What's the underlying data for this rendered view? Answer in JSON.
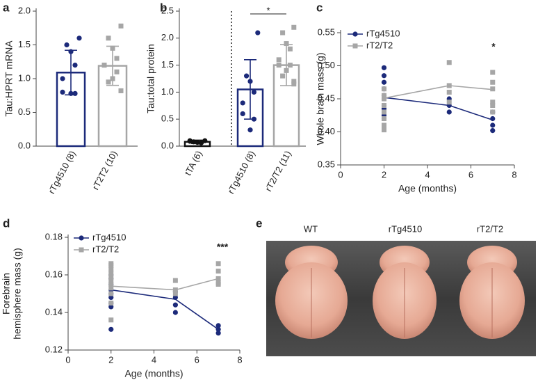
{
  "chart_data": [
    {
      "type": "bar",
      "label": "a",
      "ylabel": "Tau:HPRT mRNA",
      "categories": [
        "rTg4510 (8)",
        "rT2T2 (10)"
      ],
      "values": [
        1.09,
        1.19
      ],
      "errors": [
        0.33,
        0.29
      ],
      "colors": [
        "#1c2a7a",
        "#a6a6a6"
      ],
      "points": [
        [
          1.6,
          1.5,
          1.4,
          1.2,
          1.0,
          0.8,
          0.78,
          0.78
        ],
        [
          1.78,
          1.6,
          1.45,
          1.3,
          1.2,
          1.2,
          1.1,
          1.0,
          0.95,
          0.82
        ]
      ],
      "ylim": [
        0,
        2.0
      ],
      "yticks": [
        {
          "value": 0,
          "label": "0.0"
        },
        {
          "value": 0.5,
          "label": "0.5"
        },
        {
          "value": 1.0,
          "label": "1.0"
        },
        {
          "value": 1.5,
          "label": "1.5"
        },
        {
          "value": 2.0,
          "label": "2.0"
        }
      ]
    },
    {
      "type": "bar",
      "label": "b",
      "ylabel": "Tau:total protein",
      "annotation": "*",
      "categories": [
        "tTA (6)",
        "rTg4510 (8)",
        "rT2/T2 (11)"
      ],
      "values": [
        0.08,
        1.05,
        1.5
      ],
      "errors": [
        0.03,
        0.55,
        0.38
      ],
      "colors": [
        "#111111",
        "#1c2a7a",
        "#a6a6a6"
      ],
      "points": [
        [
          0.1,
          0.08,
          0.07,
          0.06,
          0.09,
          0.1
        ],
        [
          2.1,
          1.3,
          1.2,
          1.0,
          0.8,
          0.6,
          0.5,
          0.3
        ],
        [
          2.2,
          2.1,
          1.9,
          1.8,
          1.6,
          1.5,
          1.5,
          1.4,
          1.3,
          1.2,
          1.15
        ]
      ],
      "ylim": [
        0,
        2.5
      ],
      "yticks": [
        {
          "value": 0,
          "label": "0.0"
        },
        {
          "value": 0.5,
          "label": "0.5"
        },
        {
          "value": 1.0,
          "label": "1.0"
        },
        {
          "value": 1.5,
          "label": "1.5"
        },
        {
          "value": 2.0,
          "label": "2.0"
        },
        {
          "value": 2.5,
          "label": "2.5"
        }
      ]
    },
    {
      "type": "line",
      "label": "c",
      "ylabel": [
        "Whole brain mass (g)"
      ],
      "xlabel": "Age (months)",
      "annotation": "*",
      "x": [
        2,
        5,
        7
      ],
      "series": [
        {
          "name": "rTg4510",
          "color": "#1c2a7a",
          "marker": "circle",
          "values": [
            0.452,
            0.44,
            0.418
          ],
          "points": [
            [
              0.497,
              0.485,
              0.475,
              0.465,
              0.455,
              0.45,
              0.44,
              0.435,
              0.43,
              0.425,
              0.42
            ],
            [
              0.45,
              0.44,
              0.43
            ],
            [
              0.43,
              0.42,
              0.41,
              0.402
            ]
          ]
        },
        {
          "name": "rT2/T2",
          "color": "#a6a6a6",
          "marker": "square",
          "values": [
            0.451,
            0.47,
            0.464
          ],
          "points": [
            [
              0.465,
              0.455,
              0.45,
              0.44,
              0.43,
              0.42,
              0.41,
              0.403
            ],
            [
              0.505,
              0.47,
              0.46,
              0.445
            ],
            [
              0.49,
              0.475,
              0.465,
              0.445,
              0.44,
              0.43
            ]
          ]
        }
      ],
      "xlim": [
        0,
        8
      ],
      "xticks": [
        0,
        2,
        4,
        6,
        8
      ],
      "ylim": [
        0.35,
        0.55
      ],
      "yticks": [
        0.35,
        {
          "value": 0.4,
          "label": "0.40"
        },
        0.45,
        {
          "value": 0.5,
          "label": "0.50"
        },
        0.55
      ]
    },
    {
      "type": "line",
      "label": "d",
      "ylabel": [
        "Forebrain",
        "hemisphere mass (g)"
      ],
      "xlabel": "Age (months)",
      "annotation": "***",
      "x": [
        2,
        5,
        7
      ],
      "series": [
        {
          "name": "rTg4510",
          "color": "#1c2a7a",
          "marker": "circle",
          "values": [
            0.152,
            0.147,
            0.131
          ],
          "points": [
            [
              0.16,
              0.158,
              0.155,
              0.152,
              0.15,
              0.148,
              0.145,
              0.143,
              0.131
            ],
            [
              0.151,
              0.148,
              0.144,
              0.14
            ],
            [
              0.133,
              0.131,
              0.129
            ]
          ]
        },
        {
          "name": "rT2/T2",
          "color": "#a6a6a6",
          "marker": "square",
          "values": [
            0.154,
            0.152,
            0.158
          ],
          "points": [
            [
              0.166,
              0.165,
              0.163,
              0.161,
              0.159,
              0.157,
              0.155,
              0.153,
              0.15,
              0.145,
              0.136
            ],
            [
              0.157,
              0.152,
              0.15
            ],
            [
              0.166,
              0.162,
              0.158,
              0.156,
              0.155
            ]
          ]
        }
      ],
      "xlim": [
        0,
        8
      ],
      "xticks": [
        0,
        2,
        4,
        6,
        8
      ],
      "ylim": [
        0.12,
        0.18
      ],
      "yticks": [
        0.12,
        0.14,
        0.16,
        0.18
      ]
    }
  ],
  "photo": {
    "label": "e",
    "captions": [
      "WT",
      "rTg4510",
      "rT2/T2"
    ]
  }
}
